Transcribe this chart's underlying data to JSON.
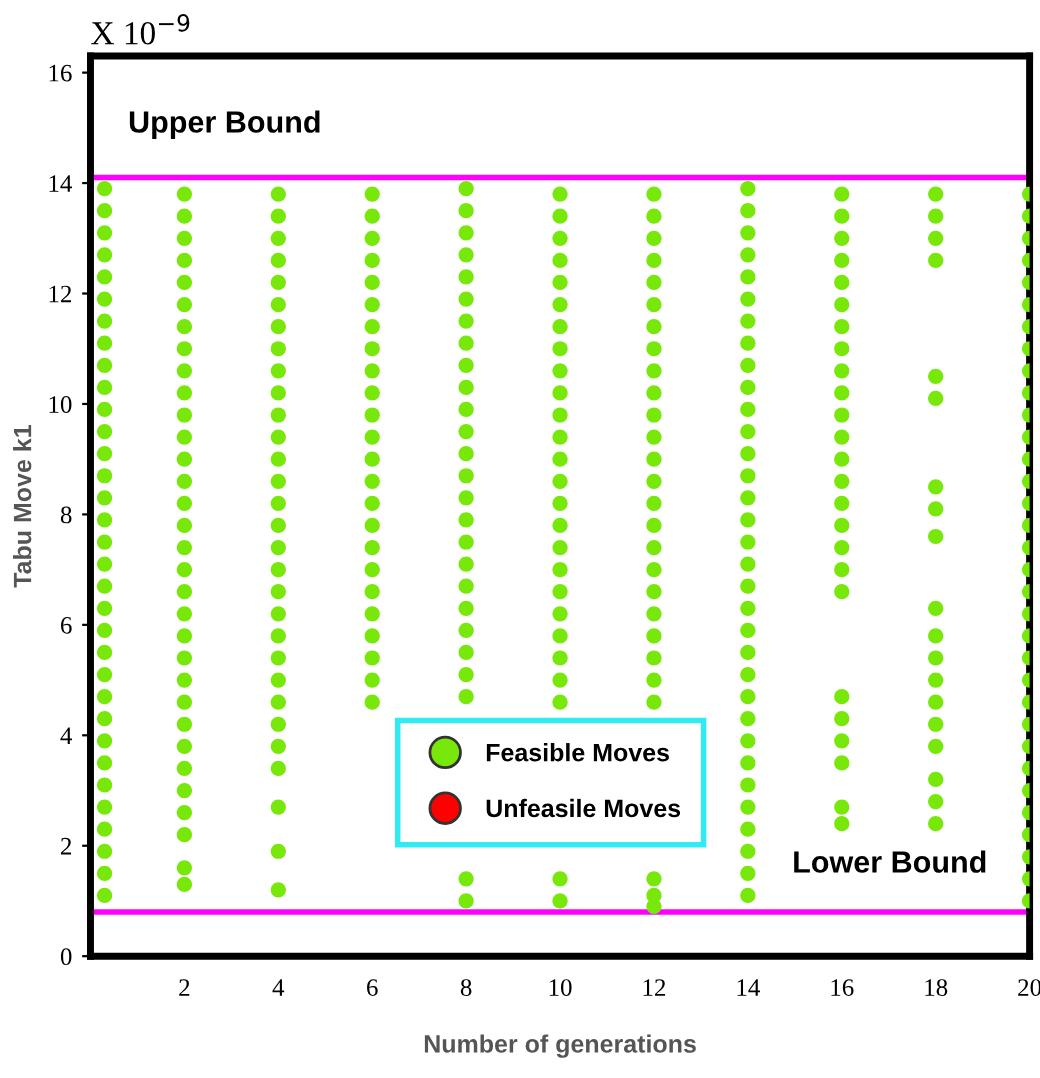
{
  "chart_data": {
    "type": "scatter",
    "xlabel": "Number of generations",
    "ylabel": "Tabu Move k1",
    "annotations": [
      "X 10$^{−9}$"
    ],
    "xlim": [
      0,
      20
    ],
    "xticks": [
      2,
      4,
      6,
      8,
      10,
      12,
      14,
      16,
      18,
      20
    ],
    "ylim": [
      0,
      16.3
    ],
    "yticks": [
      0,
      2,
      4,
      6,
      8,
      10,
      12,
      14,
      16
    ],
    "grid": false,
    "legend": "bottom",
    "marker": "circle",
    "ref_lines": [
      {
        "axis": "y",
        "value": 14.1,
        "label": "Upper Bound",
        "color": "#ff00ff"
      },
      {
        "axis": "y",
        "value": 0.8,
        "label": "Lower Bound",
        "color": "#ff00ff"
      }
    ],
    "series": [
      {
        "name": "Feasible Moves",
        "color": "#77e80a",
        "x": [
          0.3,
          0.3,
          0.3,
          0.3,
          0.3,
          0.3,
          0.3,
          0.3,
          0.3,
          0.3,
          0.3,
          0.3,
          0.3,
          0.3,
          0.3,
          0.3,
          0.3,
          0.3,
          0.3,
          0.3,
          0.3,
          0.3,
          0.3,
          0.3,
          0.3,
          0.3,
          0.3,
          0.3,
          0.3,
          0.3,
          0.3,
          0.3,
          0.3,
          2,
          2,
          2,
          2,
          2,
          2,
          2,
          2,
          2,
          2,
          2,
          2,
          2,
          2,
          2,
          2,
          2,
          2,
          2,
          2,
          2,
          2,
          2,
          2,
          2,
          2,
          2,
          2,
          2,
          2,
          2,
          2,
          4,
          4,
          4,
          4,
          4,
          4,
          4,
          4,
          4,
          4,
          4,
          4,
          4,
          4,
          4,
          4,
          4,
          4,
          4,
          4,
          4,
          4,
          4,
          4,
          4,
          4,
          4,
          4,
          4,
          4,
          6,
          6,
          6,
          6,
          6,
          6,
          6,
          6,
          6,
          6,
          6,
          6,
          6,
          6,
          6,
          6,
          6,
          6,
          6,
          6,
          6,
          6,
          6,
          6,
          8,
          8,
          8,
          8,
          8,
          8,
          8,
          8,
          8,
          8,
          8,
          8,
          8,
          8,
          8,
          8,
          8,
          8,
          8,
          8,
          8,
          8,
          8,
          8,
          8,
          8,
          10,
          10,
          10,
          10,
          10,
          10,
          10,
          10,
          10,
          10,
          10,
          10,
          10,
          10,
          10,
          10,
          10,
          10,
          10,
          10,
          10,
          10,
          10,
          10,
          10,
          10,
          12,
          12,
          12,
          12,
          12,
          12,
          12,
          12,
          12,
          12,
          12,
          12,
          12,
          12,
          12,
          12,
          12,
          12,
          12,
          12,
          12,
          12,
          12,
          12,
          12,
          12,
          12,
          14,
          14,
          14,
          14,
          14,
          14,
          14,
          14,
          14,
          14,
          14,
          14,
          14,
          14,
          14,
          14,
          14,
          14,
          14,
          14,
          14,
          14,
          14,
          14,
          14,
          14,
          14,
          14,
          14,
          14,
          14,
          14,
          14,
          16,
          16,
          16,
          16,
          16,
          16,
          16,
          16,
          16,
          16,
          16,
          16,
          16,
          16,
          16,
          16,
          16,
          16,
          16,
          16,
          16,
          16,
          16,
          16,
          16,
          18,
          18,
          18,
          18,
          18,
          18,
          18,
          18,
          18,
          18,
          18,
          18,
          18,
          18,
          18,
          18,
          18,
          18,
          18,
          20,
          20,
          20,
          20,
          20,
          20,
          20,
          20,
          20,
          20,
          20,
          20,
          20,
          20,
          20,
          20,
          20,
          20,
          20,
          20,
          20,
          20,
          20,
          20,
          20,
          20,
          20,
          20,
          20,
          20,
          20,
          20,
          20
        ],
        "values": [
          13.9,
          13.5,
          13.1,
          12.7,
          12.3,
          11.9,
          11.5,
          11.1,
          10.7,
          10.3,
          9.9,
          9.5,
          9.1,
          8.7,
          8.3,
          7.9,
          7.5,
          7.1,
          6.7,
          6.3,
          5.9,
          5.5,
          5.1,
          4.7,
          4.3,
          3.9,
          3.5,
          3.1,
          2.7,
          2.3,
          1.9,
          1.5,
          1.1,
          13.8,
          13.4,
          13.0,
          12.6,
          12.2,
          11.8,
          11.4,
          11.0,
          10.6,
          10.2,
          9.8,
          9.4,
          9.0,
          8.6,
          8.2,
          7.8,
          7.4,
          7.0,
          6.6,
          6.2,
          5.8,
          5.4,
          5.0,
          4.6,
          4.2,
          3.8,
          3.4,
          3.0,
          2.6,
          2.2,
          1.6,
          1.3,
          13.8,
          13.4,
          13.0,
          12.6,
          12.2,
          11.8,
          11.4,
          11.0,
          10.6,
          10.2,
          9.8,
          9.4,
          9.0,
          8.6,
          8.2,
          7.8,
          7.4,
          7.0,
          6.6,
          6.2,
          5.8,
          5.4,
          5.0,
          4.6,
          4.2,
          3.8,
          3.4,
          2.7,
          1.9,
          1.2,
          13.8,
          13.4,
          13.0,
          12.6,
          12.2,
          11.8,
          11.4,
          11.0,
          10.6,
          10.2,
          9.8,
          9.4,
          9.0,
          8.6,
          8.2,
          7.8,
          7.4,
          7.0,
          6.6,
          6.2,
          5.8,
          5.4,
          5.0,
          4.6,
          13.9,
          13.5,
          13.1,
          12.7,
          12.3,
          11.9,
          11.5,
          11.1,
          10.7,
          10.3,
          9.9,
          9.5,
          9.1,
          8.7,
          8.3,
          7.9,
          7.5,
          7.1,
          6.7,
          6.3,
          5.9,
          5.5,
          5.1,
          4.7,
          1.4,
          1.0,
          13.8,
          13.4,
          13.0,
          12.6,
          12.2,
          11.8,
          11.4,
          11.0,
          10.6,
          10.2,
          9.8,
          9.4,
          9.0,
          8.6,
          8.2,
          7.8,
          7.4,
          7.0,
          6.6,
          6.2,
          5.8,
          5.4,
          5.0,
          4.6,
          1.4,
          1.0,
          13.8,
          13.4,
          13.0,
          12.6,
          12.2,
          11.8,
          11.4,
          11.0,
          10.6,
          10.2,
          9.8,
          9.4,
          9.0,
          8.6,
          8.2,
          7.8,
          7.4,
          7.0,
          6.6,
          6.2,
          5.8,
          5.4,
          5.0,
          4.6,
          1.4,
          1.1,
          0.9,
          13.9,
          13.5,
          13.1,
          12.7,
          12.3,
          11.9,
          11.5,
          11.1,
          10.7,
          10.3,
          9.9,
          9.5,
          9.1,
          8.7,
          8.3,
          7.9,
          7.5,
          7.1,
          6.7,
          6.3,
          5.9,
          5.5,
          5.1,
          4.7,
          4.3,
          3.9,
          3.5,
          3.1,
          2.7,
          2.3,
          1.9,
          1.5,
          1.1,
          13.8,
          13.4,
          13.0,
          12.6,
          12.2,
          11.8,
          11.4,
          11.0,
          10.6,
          10.2,
          9.8,
          9.4,
          9.0,
          8.6,
          8.2,
          7.8,
          7.4,
          7.0,
          6.6,
          4.7,
          4.3,
          3.9,
          3.5,
          2.7,
          2.4,
          13.8,
          13.4,
          13.0,
          12.6,
          10.5,
          10.1,
          8.5,
          8.1,
          7.6,
          6.3,
          5.8,
          5.4,
          5.0,
          4.6,
          4.2,
          3.8,
          3.2,
          2.8,
          2.4,
          13.8,
          13.4,
          13.0,
          12.6,
          12.2,
          11.8,
          11.4,
          11.0,
          10.6,
          10.2,
          9.8,
          9.4,
          9.0,
          8.6,
          8.2,
          7.8,
          7.4,
          7.0,
          6.6,
          6.2,
          5.8,
          5.4,
          5.0,
          4.6,
          4.2,
          3.8,
          3.4,
          3.0,
          2.6,
          2.2,
          1.8,
          1.4,
          1.0
        ]
      },
      {
        "name": "Unfeasile Moves",
        "color": "#ff0000"
      }
    ]
  }
}
